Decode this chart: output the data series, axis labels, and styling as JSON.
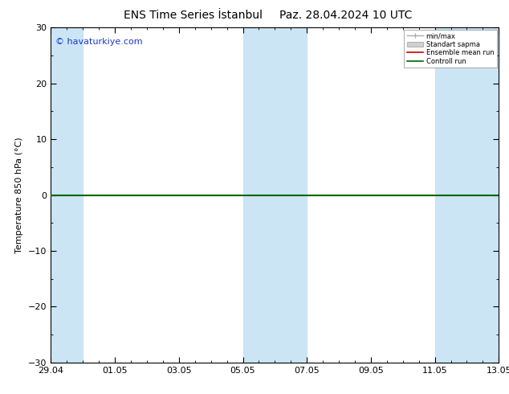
{
  "title": "ENS Time Series İstanbul",
  "title2": "Paz. 28.04.2024 10 UTC",
  "ylabel": "Temperature 850 hPa (°C)",
  "ylim": [
    -30,
    30
  ],
  "yticks": [
    -30,
    -20,
    -10,
    0,
    10,
    20,
    30
  ],
  "xtick_labels": [
    "29.04",
    "01.05",
    "03.05",
    "05.05",
    "07.05",
    "09.05",
    "11.05",
    "13.05"
  ],
  "xtick_positions": [
    0,
    2,
    4,
    6,
    8,
    10,
    12,
    14
  ],
  "band_color": "#cce5f5",
  "background_color": "#ffffff",
  "plot_bg_color": "#ffffff",
  "watermark": "© havaturkiye.com",
  "watermark_color": "#1a3acc",
  "legend_min_max_color": "#aaaaaa",
  "legend_std_color": "#d0d0d0",
  "legend_ensemble_color": "#cc0000",
  "legend_control_color": "#006400",
  "control_line_color": "#006400",
  "title_fontsize": 10,
  "tick_fontsize": 8,
  "ylabel_fontsize": 8,
  "watermark_fontsize": 8
}
